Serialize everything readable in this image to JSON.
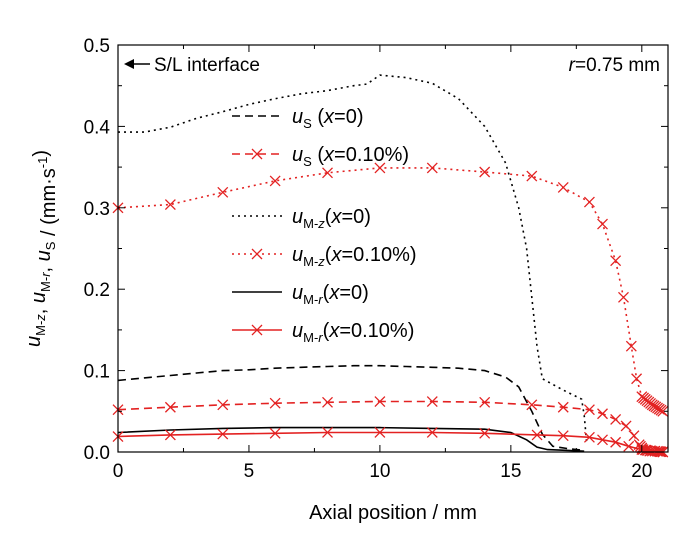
{
  "chart_data": {
    "type": "line",
    "xlabel": "Axial position / mm",
    "ylabel": {
      "parts": [
        {
          "t": "u",
          "italic": true
        },
        {
          "t": "M-z",
          "sub": true,
          "italic_z": true
        },
        {
          "t": ", "
        },
        {
          "t": "u",
          "italic": true
        },
        {
          "t": "M-r",
          "sub": true
        },
        {
          "t": ", "
        },
        {
          "t": "u",
          "italic": true
        },
        {
          "t": "S",
          "sub": true
        },
        {
          "t": " / (mm·s"
        },
        {
          "t": "-1",
          "sup": true
        },
        {
          "t": ")"
        }
      ]
    },
    "xlim": [
      0,
      21
    ],
    "ylim": [
      0,
      0.5
    ],
    "xticks": [
      0,
      5,
      10,
      15,
      20
    ],
    "yticks": [
      0.0,
      0.1,
      0.2,
      0.3,
      0.4,
      0.5
    ],
    "xtick_labels": [
      "0",
      "5",
      "10",
      "15",
      "20"
    ],
    "ytick_labels": [
      "0.0",
      "0.1",
      "0.2",
      "0.3",
      "0.4",
      "0.5"
    ],
    "grid": false,
    "legend_position": "center-left",
    "annotations": {
      "interface": "S/L interface",
      "radius_var": "r",
      "radius_value": "=0.75 mm"
    },
    "series": [
      {
        "key": "uS_x0",
        "legend": {
          "sym": "u",
          "sub": "S",
          "rest_pre": " (",
          "var": "x",
          "rest_post": "=0)"
        },
        "color": "#000000",
        "dash": "8,5",
        "marker": "none",
        "points": [
          [
            0,
            0.088
          ],
          [
            1,
            0.091
          ],
          [
            2,
            0.094
          ],
          [
            3,
            0.097
          ],
          [
            4,
            0.1
          ],
          [
            5,
            0.101
          ],
          [
            6,
            0.103
          ],
          [
            7,
            0.104
          ],
          [
            8,
            0.105
          ],
          [
            9,
            0.106
          ],
          [
            10,
            0.106
          ],
          [
            11,
            0.105
          ],
          [
            12,
            0.104
          ],
          [
            13,
            0.103
          ],
          [
            14,
            0.1
          ],
          [
            14.8,
            0.092
          ],
          [
            15.3,
            0.08
          ],
          [
            15.8,
            0.05
          ],
          [
            16.2,
            0.022
          ],
          [
            16.6,
            0.007
          ],
          [
            17.2,
            0.004
          ],
          [
            17.8,
            0.002
          ]
        ]
      },
      {
        "key": "uS_x010",
        "legend": {
          "sym": "u",
          "sub": "S",
          "rest_pre": " (",
          "var": "x",
          "rest_post": "=0.10%)"
        },
        "color": "#e32222",
        "dash": "8,5",
        "marker": "x",
        "points": [
          [
            0,
            0.052
          ],
          [
            2,
            0.055
          ],
          [
            4,
            0.058
          ],
          [
            6,
            0.06
          ],
          [
            8,
            0.061
          ],
          [
            10,
            0.062
          ],
          [
            12,
            0.062
          ],
          [
            14,
            0.061
          ],
          [
            15.8,
            0.058
          ],
          [
            17,
            0.055
          ],
          [
            18,
            0.052
          ],
          [
            18.5,
            0.047
          ],
          [
            19,
            0.04
          ],
          [
            19.4,
            0.032
          ],
          [
            19.7,
            0.02
          ],
          [
            19.9,
            0.009
          ],
          [
            20.05,
            0.003
          ],
          [
            20.3,
            0.001
          ],
          [
            20.6,
            0.001
          ],
          [
            20.8,
            0.0
          ]
        ]
      },
      {
        "key": "uMz_x0",
        "legend": {
          "sym": "u",
          "sub": "M-",
          "subvar": "z",
          "rest_pre": "(",
          "var": "x",
          "rest_post": "=0)"
        },
        "color": "#000000",
        "dash": "2,4",
        "marker": "none",
        "points": [
          [
            0,
            0.393
          ],
          [
            1,
            0.393
          ],
          [
            2,
            0.399
          ],
          [
            3,
            0.41
          ],
          [
            4,
            0.418
          ],
          [
            5,
            0.427
          ],
          [
            6,
            0.434
          ],
          [
            7,
            0.44
          ],
          [
            8,
            0.444
          ],
          [
            9,
            0.45
          ],
          [
            9.5,
            0.452
          ],
          [
            10,
            0.463
          ],
          [
            11,
            0.46
          ],
          [
            12,
            0.453
          ],
          [
            13,
            0.434
          ],
          [
            14,
            0.4
          ],
          [
            14.8,
            0.355
          ],
          [
            15.3,
            0.3
          ],
          [
            15.6,
            0.25
          ],
          [
            15.8,
            0.19
          ],
          [
            16,
            0.13
          ],
          [
            16.2,
            0.09
          ],
          [
            17,
            0.076
          ],
          [
            17.7,
            0.065
          ],
          [
            17.8,
            0.045
          ],
          [
            17.9,
            0.01
          ]
        ]
      },
      {
        "key": "uMz_x010",
        "legend": {
          "sym": "u",
          "sub": "M-",
          "subvar": "z",
          "rest_pre": "(",
          "var": "x",
          "rest_post": "=0.10%)"
        },
        "color": "#e32222",
        "dash": "2,4",
        "marker": "x",
        "points": [
          [
            0,
            0.3
          ],
          [
            2,
            0.304
          ],
          [
            4,
            0.319
          ],
          [
            6,
            0.333
          ],
          [
            8,
            0.343
          ],
          [
            10,
            0.349
          ],
          [
            12,
            0.349
          ],
          [
            14,
            0.344
          ],
          [
            15.8,
            0.339
          ],
          [
            17,
            0.325
          ],
          [
            18,
            0.307
          ],
          [
            18.5,
            0.28
          ],
          [
            19,
            0.235
          ],
          [
            19.3,
            0.19
          ],
          [
            19.6,
            0.13
          ],
          [
            19.8,
            0.09
          ],
          [
            20.0,
            0.068
          ],
          [
            20.2,
            0.063
          ],
          [
            20.4,
            0.058
          ],
          [
            20.6,
            0.054
          ],
          [
            20.8,
            0.05
          ]
        ]
      },
      {
        "key": "uMr_x0",
        "legend": {
          "sym": "u",
          "sub": "M-",
          "subvar": "r",
          "rest_pre": "(",
          "var": "x",
          "rest_post": "=0)"
        },
        "color": "#000000",
        "dash": "",
        "marker": "none",
        "points": [
          [
            0,
            0.024
          ],
          [
            2,
            0.027
          ],
          [
            4,
            0.029
          ],
          [
            6,
            0.03
          ],
          [
            8,
            0.03
          ],
          [
            10,
            0.03
          ],
          [
            12,
            0.029
          ],
          [
            14,
            0.028
          ],
          [
            15,
            0.024
          ],
          [
            15.6,
            0.015
          ],
          [
            16,
            0.006
          ],
          [
            16.4,
            0.003
          ],
          [
            17.2,
            0.002
          ],
          [
            17.8,
            0.001
          ]
        ]
      },
      {
        "key": "uMr_x010",
        "legend": {
          "sym": "u",
          "sub": "M-",
          "subvar": "r",
          "rest_pre": "(",
          "var": "x",
          "rest_post": "=0.10%)"
        },
        "color": "#e32222",
        "dash": "",
        "marker": "x",
        "points": [
          [
            0,
            0.019
          ],
          [
            2,
            0.021
          ],
          [
            4,
            0.022
          ],
          [
            6,
            0.023
          ],
          [
            8,
            0.024
          ],
          [
            10,
            0.024
          ],
          [
            12,
            0.024
          ],
          [
            14,
            0.023
          ],
          [
            16,
            0.021
          ],
          [
            17,
            0.02
          ],
          [
            18,
            0.018
          ],
          [
            18.5,
            0.015
          ],
          [
            19,
            0.012
          ],
          [
            19.5,
            0.007
          ],
          [
            20,
            0.003
          ],
          [
            20.5,
            0.001
          ],
          [
            20.8,
            0.0
          ]
        ]
      }
    ]
  }
}
